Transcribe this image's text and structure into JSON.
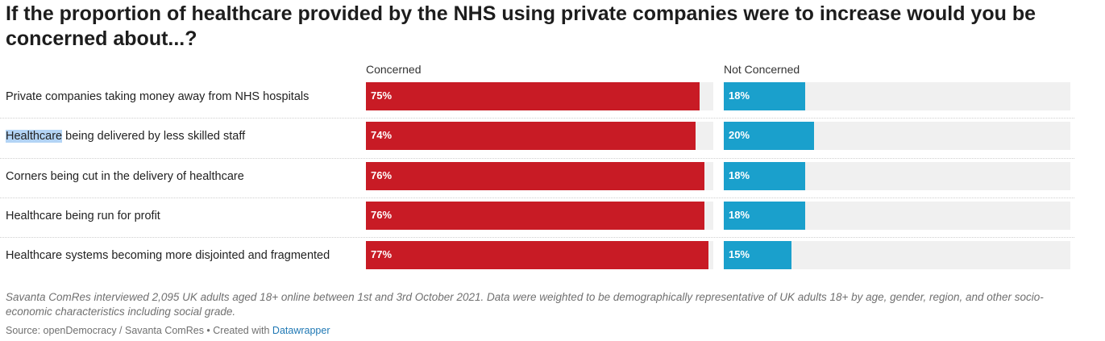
{
  "header": {
    "title": "If the proportion of healthcare provided by the NHS using private companies were to increase would you be concerned about...?"
  },
  "chart_data": {
    "type": "bar",
    "columns": [
      "Concerned",
      "Not Concerned"
    ],
    "categories": [
      "Private companies taking money away from NHS hospitals",
      "Healthcare being delivered by less skilled staff",
      "Corners being cut in the delivery of healthcare",
      "Healthcare being run for profit",
      "Healthcare systems becoming more disjointed and fragmented"
    ],
    "series": [
      {
        "name": "Concerned",
        "values": [
          75,
          74,
          76,
          76,
          77
        ],
        "labels": [
          "75%",
          "74%",
          "76%",
          "76%",
          "77%"
        ],
        "color": "#c81b25"
      },
      {
        "name": "Not Concerned",
        "values": [
          18,
          20,
          18,
          18,
          15
        ],
        "labels": [
          "18%",
          "20%",
          "18%",
          "18%",
          "15%"
        ],
        "color": "#1aa0cc"
      }
    ],
    "xlim": [
      0,
      100
    ],
    "grid": false,
    "track_color": "#f0f0f0"
  },
  "footer": {
    "notes": "Savanta ComRes interviewed 2,095 UK adults aged 18+ online between 1st and 3rd October 2021. Data were weighted to be demographically representative of UK adults 18+ by age, gender, region, and other socio-economic characteristics including social grade.",
    "source_prefix": "Source: openDemocracy / Savanta ComRes • Created with ",
    "source_link": "Datawrapper"
  }
}
